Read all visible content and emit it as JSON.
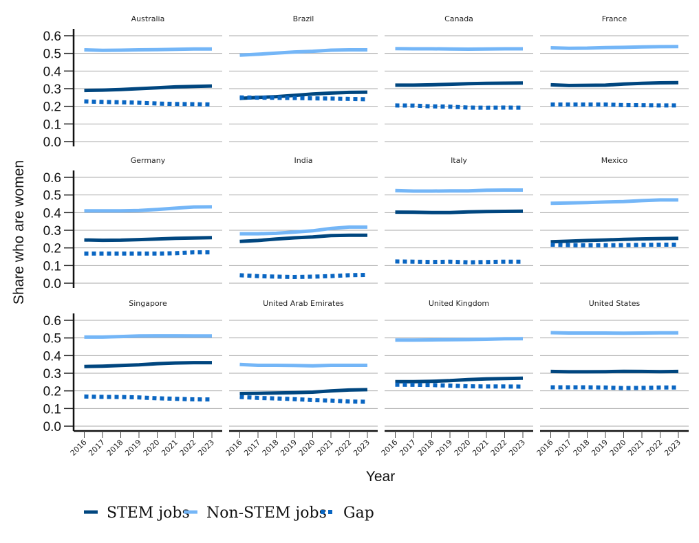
{
  "chart_data": {
    "type": "line",
    "layout": "facet-grid 3x4",
    "ylabel": "Share who are women",
    "xlabel": "Year",
    "ylim": [
      0,
      0.6
    ],
    "yticks": [
      "0.0",
      "0.1",
      "0.2",
      "0.3",
      "0.4",
      "0.5",
      "0.6"
    ],
    "x": [
      "2016",
      "2017",
      "2018",
      "2019",
      "2020",
      "2021",
      "2022",
      "2023"
    ],
    "grid": true,
    "legend_position": "bottom",
    "series_styles": [
      {
        "key": "stem",
        "name": "STEM jobs",
        "color": "#00467f",
        "dash": "solid"
      },
      {
        "key": "nonstem",
        "name": "Non-STEM jobs",
        "color": "#74b6f7",
        "dash": "solid"
      },
      {
        "key": "gap",
        "name": "Gap",
        "color": "#0a66c2",
        "dash": "dotted"
      }
    ],
    "panels": [
      {
        "title": "Australia",
        "nonstem": [
          0.52,
          0.517,
          0.518,
          0.52,
          0.521,
          0.523,
          0.525,
          0.525
        ],
        "stem": [
          0.29,
          0.292,
          0.295,
          0.3,
          0.305,
          0.31,
          0.313,
          0.315
        ],
        "gap": [
          0.228,
          0.225,
          0.223,
          0.22,
          0.216,
          0.213,
          0.212,
          0.21
        ]
      },
      {
        "title": "Brazil",
        "nonstem": [
          0.49,
          0.495,
          0.502,
          0.508,
          0.512,
          0.518,
          0.52,
          0.52
        ],
        "stem": [
          0.245,
          0.25,
          0.255,
          0.262,
          0.27,
          0.275,
          0.279,
          0.28
        ],
        "gap": [
          0.25,
          0.249,
          0.248,
          0.247,
          0.245,
          0.244,
          0.242,
          0.24
        ]
      },
      {
        "title": "Canada",
        "nonstem": [
          0.527,
          0.526,
          0.526,
          0.525,
          0.524,
          0.525,
          0.526,
          0.526
        ],
        "stem": [
          0.32,
          0.32,
          0.322,
          0.325,
          0.328,
          0.33,
          0.331,
          0.332
        ],
        "gap": [
          0.205,
          0.204,
          0.2,
          0.198,
          0.193,
          0.192,
          0.193,
          0.192
        ]
      },
      {
        "title": "France",
        "nonstem": [
          0.532,
          0.529,
          0.53,
          0.533,
          0.534,
          0.537,
          0.538,
          0.539
        ],
        "stem": [
          0.322,
          0.318,
          0.319,
          0.32,
          0.326,
          0.33,
          0.333,
          0.334
        ],
        "gap": [
          0.21,
          0.21,
          0.21,
          0.21,
          0.207,
          0.206,
          0.205,
          0.205
        ]
      },
      {
        "title": "Germany",
        "nonstem": [
          0.41,
          0.41,
          0.41,
          0.412,
          0.418,
          0.425,
          0.432,
          0.433
        ],
        "stem": [
          0.245,
          0.243,
          0.244,
          0.247,
          0.25,
          0.254,
          0.256,
          0.258
        ],
        "gap": [
          0.168,
          0.168,
          0.168,
          0.168,
          0.168,
          0.17,
          0.175,
          0.175
        ]
      },
      {
        "title": "India",
        "nonstem": [
          0.28,
          0.28,
          0.283,
          0.29,
          0.297,
          0.31,
          0.318,
          0.318
        ],
        "stem": [
          0.237,
          0.242,
          0.25,
          0.257,
          0.262,
          0.27,
          0.272,
          0.272
        ],
        "gap": [
          0.045,
          0.04,
          0.037,
          0.035,
          0.037,
          0.04,
          0.045,
          0.047
        ]
      },
      {
        "title": "Italy",
        "nonstem": [
          0.525,
          0.522,
          0.522,
          0.523,
          0.523,
          0.527,
          0.528,
          0.528
        ],
        "stem": [
          0.403,
          0.402,
          0.4,
          0.4,
          0.404,
          0.406,
          0.407,
          0.408
        ],
        "gap": [
          0.123,
          0.122,
          0.12,
          0.122,
          0.118,
          0.12,
          0.122,
          0.122
        ]
      },
      {
        "title": "Mexico",
        "nonstem": [
          0.453,
          0.455,
          0.457,
          0.46,
          0.463,
          0.468,
          0.472,
          0.472
        ],
        "stem": [
          0.235,
          0.238,
          0.242,
          0.245,
          0.248,
          0.251,
          0.253,
          0.254
        ],
        "gap": [
          0.218,
          0.216,
          0.215,
          0.215,
          0.216,
          0.217,
          0.218,
          0.218
        ]
      },
      {
        "title": "Singapore",
        "nonstem": [
          0.505,
          0.505,
          0.508,
          0.511,
          0.512,
          0.512,
          0.511,
          0.511
        ],
        "stem": [
          0.338,
          0.34,
          0.344,
          0.348,
          0.354,
          0.358,
          0.36,
          0.36
        ],
        "gap": [
          0.168,
          0.166,
          0.165,
          0.163,
          0.158,
          0.155,
          0.152,
          0.151
        ]
      },
      {
        "title": "United Arab Emirates",
        "nonstem": [
          0.35,
          0.345,
          0.345,
          0.344,
          0.342,
          0.345,
          0.345,
          0.345
        ],
        "stem": [
          0.185,
          0.186,
          0.188,
          0.19,
          0.193,
          0.2,
          0.205,
          0.207
        ],
        "gap": [
          0.165,
          0.16,
          0.157,
          0.153,
          0.148,
          0.145,
          0.14,
          0.138
        ]
      },
      {
        "title": "United Kingdom",
        "nonstem": [
          0.488,
          0.488,
          0.489,
          0.49,
          0.491,
          0.493,
          0.495,
          0.496
        ],
        "stem": [
          0.252,
          0.252,
          0.254,
          0.258,
          0.264,
          0.268,
          0.27,
          0.272
        ],
        "gap": [
          0.235,
          0.234,
          0.233,
          0.23,
          0.226,
          0.225,
          0.225,
          0.224
        ]
      },
      {
        "title": "United States",
        "nonstem": [
          0.53,
          0.528,
          0.528,
          0.528,
          0.527,
          0.528,
          0.529,
          0.529
        ],
        "stem": [
          0.31,
          0.308,
          0.308,
          0.309,
          0.311,
          0.31,
          0.309,
          0.31
        ],
        "gap": [
          0.22,
          0.22,
          0.22,
          0.219,
          0.216,
          0.217,
          0.219,
          0.219
        ]
      }
    ]
  }
}
